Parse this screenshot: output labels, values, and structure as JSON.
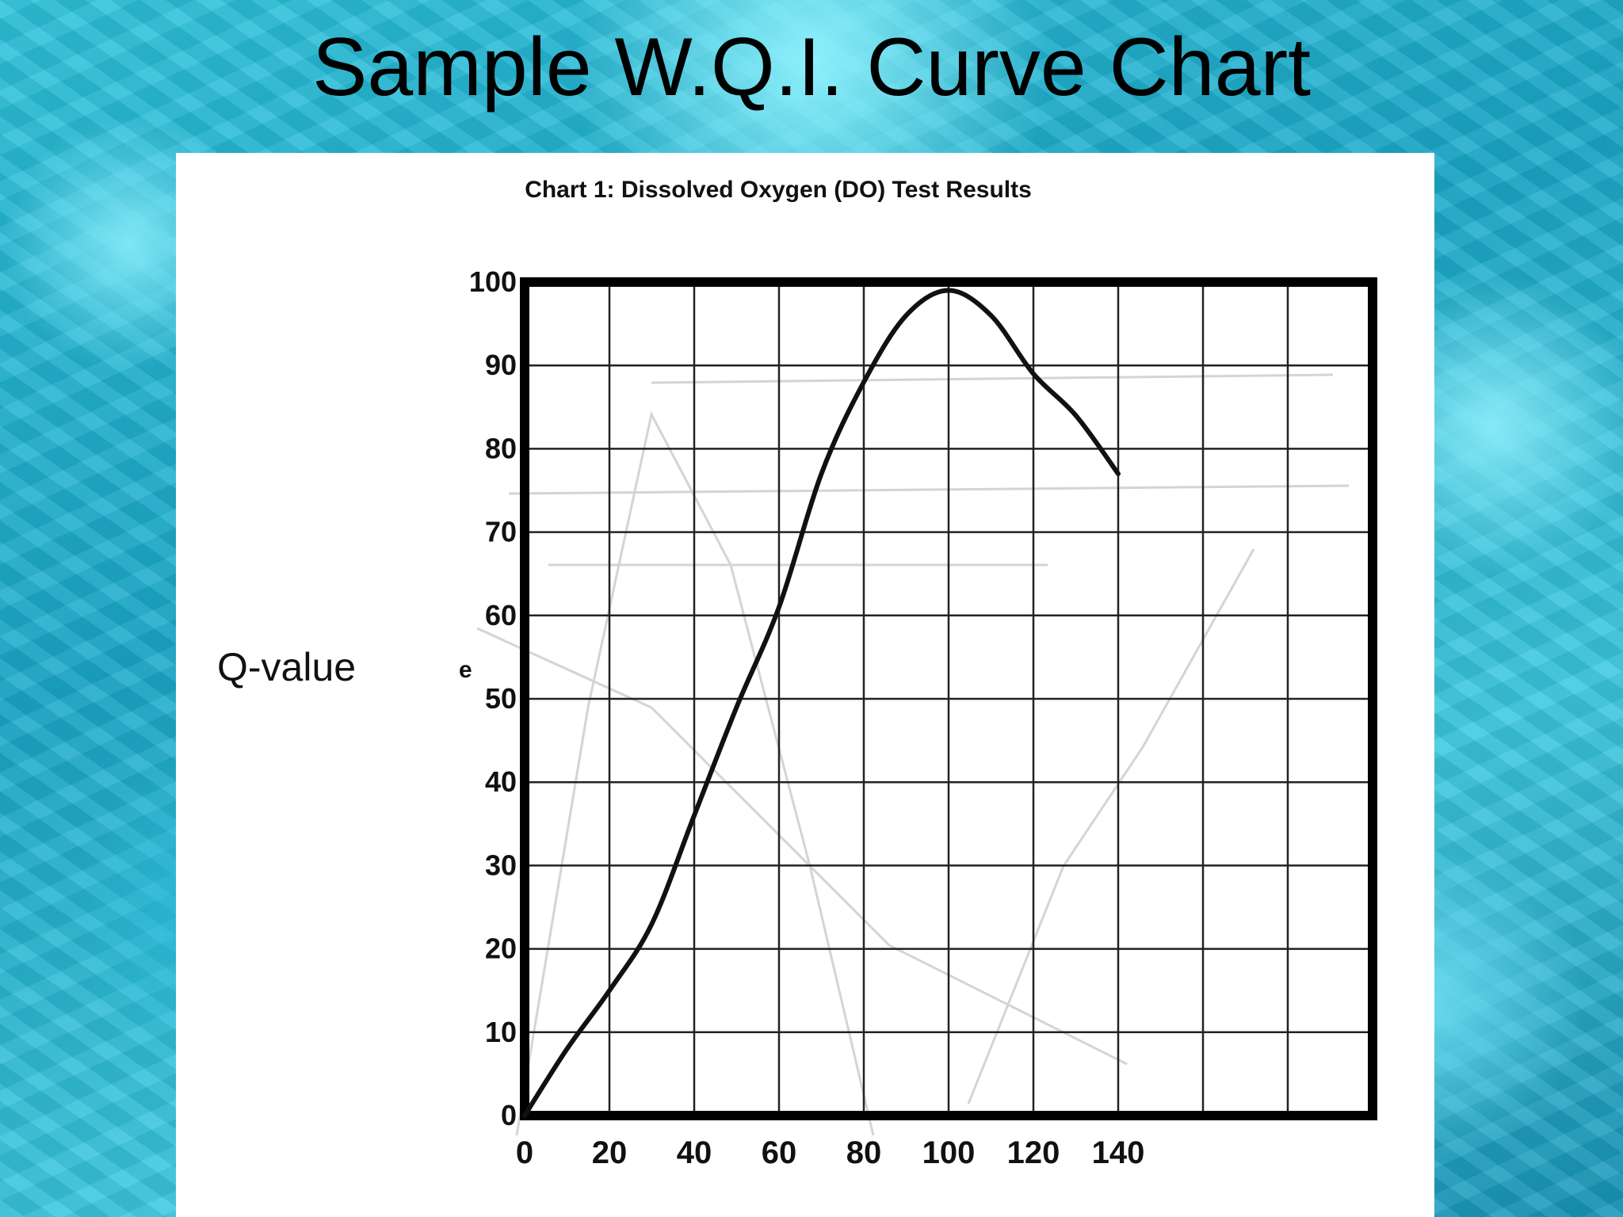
{
  "slide": {
    "title": "Sample W.Q.I. Curve Chart"
  },
  "chart_data": {
    "type": "line",
    "title": "Chart 1: Dissolved Oxygen (DO) Test Results",
    "xlabel": "",
    "ylabel": "Q-value",
    "ylabel_fragment": "e",
    "xlim": [
      0,
      200
    ],
    "ylim": [
      0,
      100
    ],
    "x_ticks": [
      0,
      20,
      40,
      60,
      80,
      100,
      120,
      140
    ],
    "y_ticks": [
      0,
      10,
      20,
      30,
      40,
      50,
      60,
      70,
      80,
      90,
      100
    ],
    "grid": true,
    "series": [
      {
        "color": "#111111",
        "x": [
          0,
          10,
          20,
          30,
          40,
          50,
          60,
          70,
          80,
          90,
          100,
          110,
          120,
          130,
          140
        ],
        "y": [
          0,
          8,
          15,
          23,
          36,
          49,
          61,
          77,
          88,
          96,
          99,
          96,
          89,
          84,
          77
        ]
      }
    ]
  }
}
